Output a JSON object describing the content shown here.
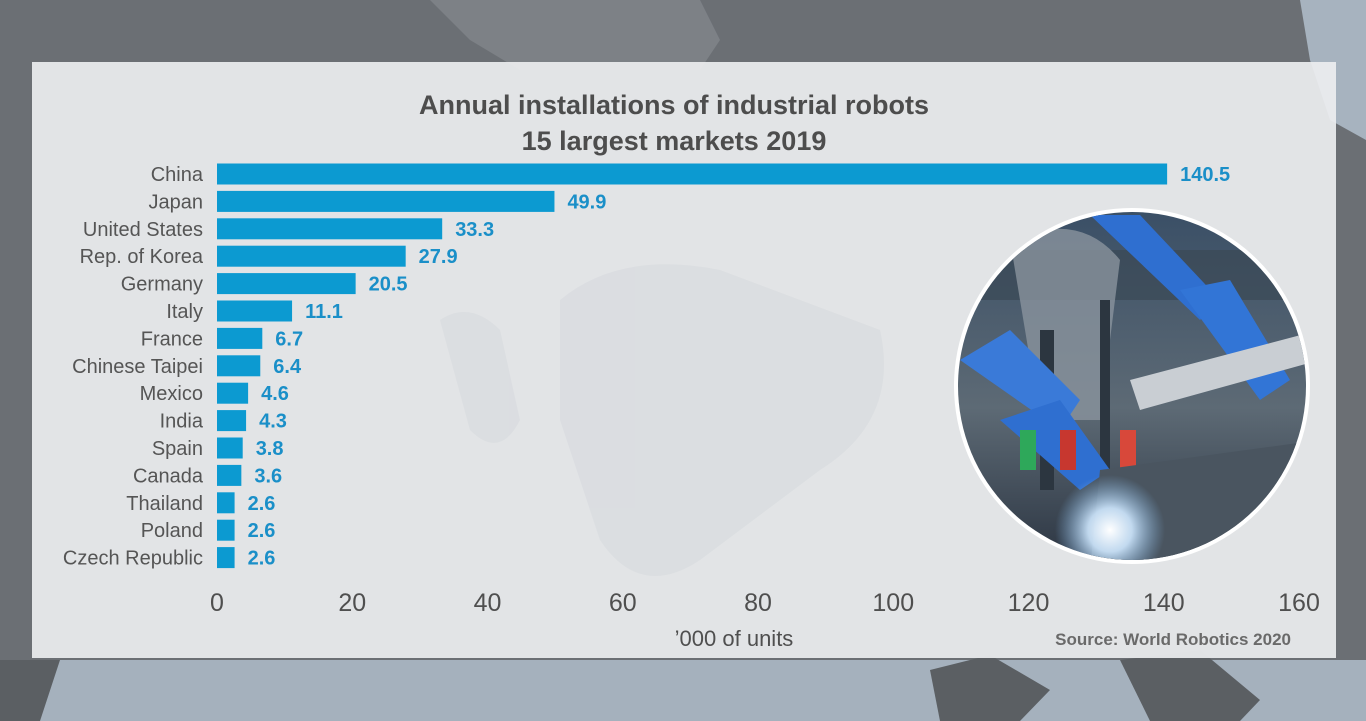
{
  "colors": {
    "bar": "#0c9ad1",
    "value_label": "#1a8fc8",
    "text": "#4d4d4d",
    "panel": "#ecedef",
    "background": "#6b6f74"
  },
  "photo": {
    "icon": "industrial-robot-welding-photo"
  },
  "chart_data": {
    "type": "bar",
    "orientation": "horizontal",
    "title_lines": [
      "Annual installations of industrial robots",
      "15 largest markets 2019"
    ],
    "categories": [
      "China",
      "Japan",
      "United States",
      "Rep. of Korea",
      "Germany",
      "Italy",
      "France",
      "Chinese Taipei",
      "Mexico",
      "India",
      "Spain",
      "Canada",
      "Thailand",
      "Poland",
      "Czech Republic"
    ],
    "values": [
      140.5,
      49.9,
      33.3,
      27.9,
      20.5,
      11.1,
      6.7,
      6.4,
      4.6,
      4.3,
      3.8,
      3.6,
      2.6,
      2.6,
      2.6
    ],
    "value_labels": [
      "140.5",
      "49.9",
      "33.3",
      "27.9",
      "20.5",
      "11.1",
      "6.7",
      "6.4",
      "4.6",
      "4.3",
      "3.8",
      "3.6",
      "2.6",
      "2.6",
      "2.6"
    ],
    "xlim": [
      0,
      160
    ],
    "xticks": [
      0,
      20,
      40,
      60,
      80,
      100,
      120,
      140,
      160
    ],
    "xlabel": "’000 of units",
    "ylabel": "",
    "source": "Source: World Robotics 2020",
    "grid": false,
    "legend": "none"
  }
}
